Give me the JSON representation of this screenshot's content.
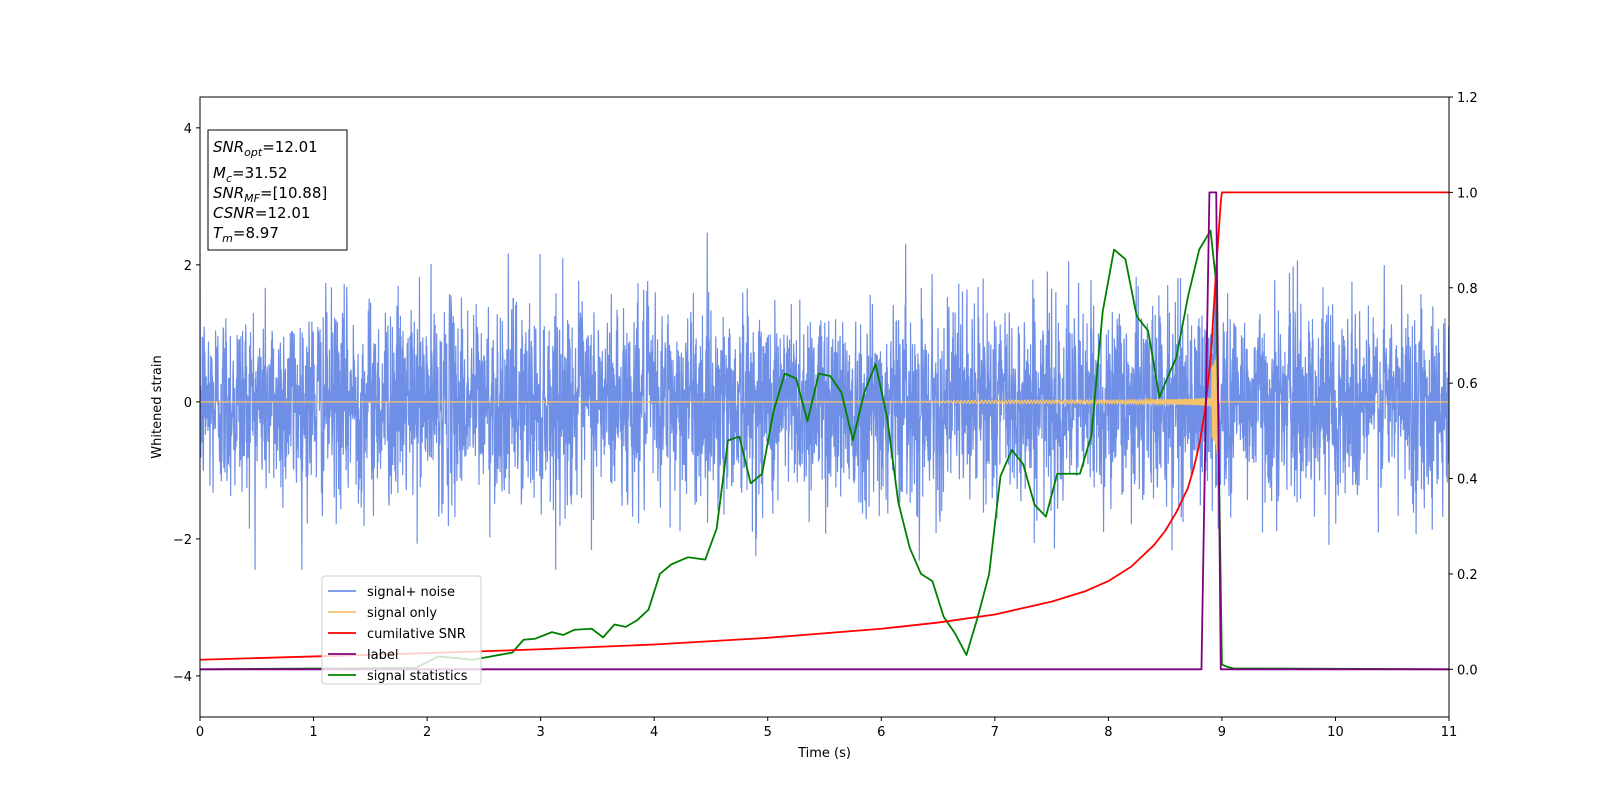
{
  "chart_data": {
    "type": "line",
    "title": "",
    "xlabel": "Time (s)",
    "ylabel": "Whitened strain",
    "y2label": "",
    "xlim": [
      0,
      11
    ],
    "ylim": [
      -4.6,
      4.45
    ],
    "y2lim": [
      -0.1,
      1.2
    ],
    "grid": false,
    "legend_position": "lower-left",
    "x_ticks": [
      "0",
      "1",
      "2",
      "3",
      "4",
      "5",
      "6",
      "7",
      "8",
      "9",
      "10",
      "11"
    ],
    "x_tick_values": [
      0,
      1,
      2,
      3,
      4,
      5,
      6,
      7,
      8,
      9,
      10,
      11
    ],
    "y_ticks": [
      "−4",
      "−2",
      "0",
      "2",
      "4"
    ],
    "y_tick_values": [
      -4,
      -2,
      0,
      2,
      4
    ],
    "y2_ticks": [
      "0.0",
      "0.2",
      "0.4",
      "0.6",
      "0.8",
      "1.0",
      "1.2"
    ],
    "y2_tick_values": [
      0.0,
      0.2,
      0.4,
      0.6,
      0.8,
      1.0,
      1.2
    ],
    "annotation": {
      "lines": [
        {
          "var": "SNR",
          "sub": "opt",
          "value": "=12.01"
        },
        {
          "var": "M",
          "sub": "c",
          "value": "=31.52"
        },
        {
          "var": "SNR",
          "sub": "MF",
          "value": "=[10.88]"
        },
        {
          "var": "CSNR",
          "sub": "",
          "value": "=12.01"
        },
        {
          "var": "T",
          "sub": "m",
          "value": "=8.97"
        }
      ]
    },
    "series": [
      {
        "name": "signal+ noise",
        "axis": "left",
        "color": "#6f8fe6",
        "noise_std": 0.72,
        "signal_start": 7.3,
        "signal_end": 8.97
      },
      {
        "name": "signal only",
        "axis": "left",
        "color": "#f5c36b",
        "chirp_start": 6.2,
        "merger_time": 8.97,
        "peak_amplitude": 1.8
      },
      {
        "name": "cumilative SNR",
        "axis": "right",
        "color": "#ff0000",
        "x": [
          0,
          1,
          2,
          3,
          4,
          5,
          6,
          6.5,
          7,
          7.5,
          7.8,
          8.0,
          8.2,
          8.4,
          8.5,
          8.6,
          8.7,
          8.75,
          8.8,
          8.85,
          8.9,
          8.95,
          8.99,
          9.0,
          11
        ],
        "y": [
          0.02,
          0.027,
          0.034,
          0.042,
          0.052,
          0.066,
          0.085,
          0.098,
          0.115,
          0.142,
          0.164,
          0.185,
          0.215,
          0.26,
          0.29,
          0.33,
          0.38,
          0.42,
          0.47,
          0.54,
          0.65,
          0.84,
          0.98,
          1.0,
          1.0
        ]
      },
      {
        "name": "label",
        "axis": "right",
        "color": "#800080",
        "x": [
          0,
          8.82,
          8.89,
          8.95,
          8.99,
          11
        ],
        "y": [
          0,
          0,
          1.0,
          1.0,
          0,
          0
        ]
      },
      {
        "name": "signal statistics",
        "axis": "right",
        "color": "#008000",
        "x": [
          0,
          1.9,
          2.1,
          2.4,
          2.75,
          2.85,
          2.95,
          3.1,
          3.2,
          3.3,
          3.45,
          3.55,
          3.65,
          3.75,
          3.85,
          3.95,
          4.05,
          4.15,
          4.3,
          4.45,
          4.55,
          4.65,
          4.75,
          4.85,
          4.95,
          5.05,
          5.15,
          5.25,
          5.35,
          5.45,
          5.55,
          5.65,
          5.75,
          5.85,
          5.95,
          6.05,
          6.15,
          6.25,
          6.35,
          6.45,
          6.55,
          6.65,
          6.75,
          6.85,
          6.95,
          7.05,
          7.15,
          7.25,
          7.35,
          7.45,
          7.55,
          7.65,
          7.75,
          7.85,
          7.95,
          8.05,
          8.15,
          8.25,
          8.35,
          8.45,
          8.5,
          8.6,
          8.7,
          8.8,
          8.9,
          8.95,
          9.0,
          9.05,
          9.1,
          11
        ],
        "y": [
          0.0,
          0.003,
          0.027,
          0.02,
          0.035,
          0.062,
          0.064,
          0.078,
          0.072,
          0.083,
          0.085,
          0.067,
          0.094,
          0.089,
          0.103,
          0.125,
          0.2,
          0.22,
          0.235,
          0.23,
          0.295,
          0.48,
          0.488,
          0.39,
          0.41,
          0.54,
          0.62,
          0.61,
          0.52,
          0.62,
          0.615,
          0.58,
          0.48,
          0.58,
          0.64,
          0.53,
          0.35,
          0.255,
          0.2,
          0.185,
          0.11,
          0.075,
          0.03,
          0.11,
          0.2,
          0.405,
          0.46,
          0.43,
          0.345,
          0.32,
          0.41,
          0.41,
          0.41,
          0.49,
          0.75,
          0.88,
          0.86,
          0.74,
          0.71,
          0.57,
          0.6,
          0.655,
          0.78,
          0.88,
          0.92,
          0.81,
          0.01,
          0.005,
          0.002,
          0.0
        ]
      }
    ]
  }
}
